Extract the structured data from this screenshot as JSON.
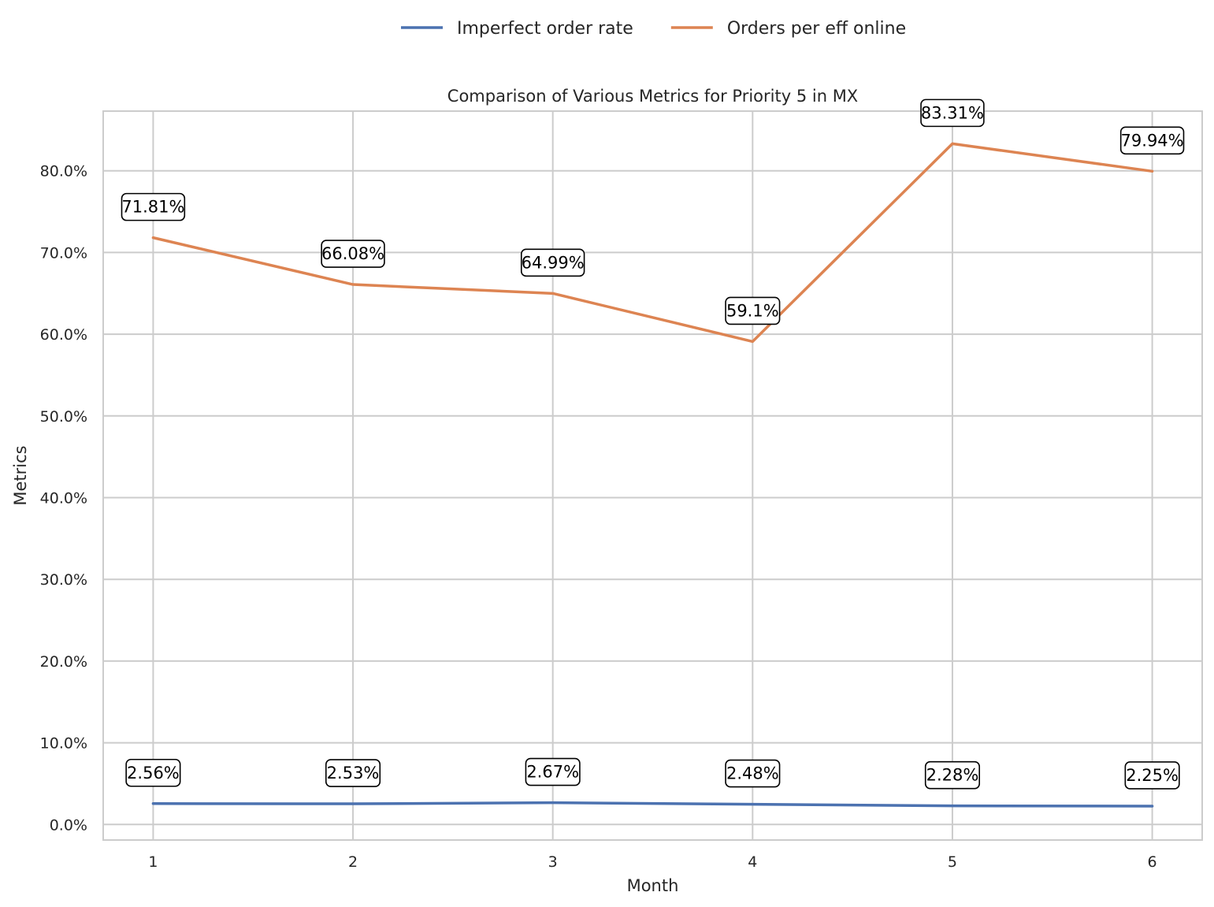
{
  "chart_data": {
    "type": "line",
    "title": "Comparison of Various Metrics for Priority 5 in MX",
    "xlabel": "Month",
    "ylabel": "Metrics",
    "x": [
      1,
      2,
      3,
      4,
      5,
      6
    ],
    "x_tick_labels": [
      "1",
      "2",
      "3",
      "4",
      "5",
      "6"
    ],
    "ylim": [
      -1.9,
      87.3
    ],
    "y_ticks": [
      0,
      10,
      20,
      30,
      40,
      50,
      60,
      70,
      80
    ],
    "y_tick_labels": [
      "0.0%",
      "10.0%",
      "20.0%",
      "30.0%",
      "40.0%",
      "50.0%",
      "60.0%",
      "70.0%",
      "80.0%"
    ],
    "grid": true,
    "legend_position": "top-center",
    "series": [
      {
        "name": "Imperfect order rate",
        "color": "#4c72b0",
        "values": [
          2.56,
          2.53,
          2.67,
          2.48,
          2.28,
          2.25
        ],
        "labels": [
          "2.56%",
          "2.53%",
          "2.67%",
          "2.48%",
          "2.28%",
          "2.25%"
        ]
      },
      {
        "name": "Orders per eff online",
        "color": "#dd8452",
        "values": [
          71.81,
          66.08,
          64.99,
          59.1,
          83.31,
          79.94
        ],
        "labels": [
          "71.81%",
          "66.08%",
          "64.99%",
          "59.1%",
          "83.31%",
          "79.94%"
        ]
      }
    ]
  }
}
